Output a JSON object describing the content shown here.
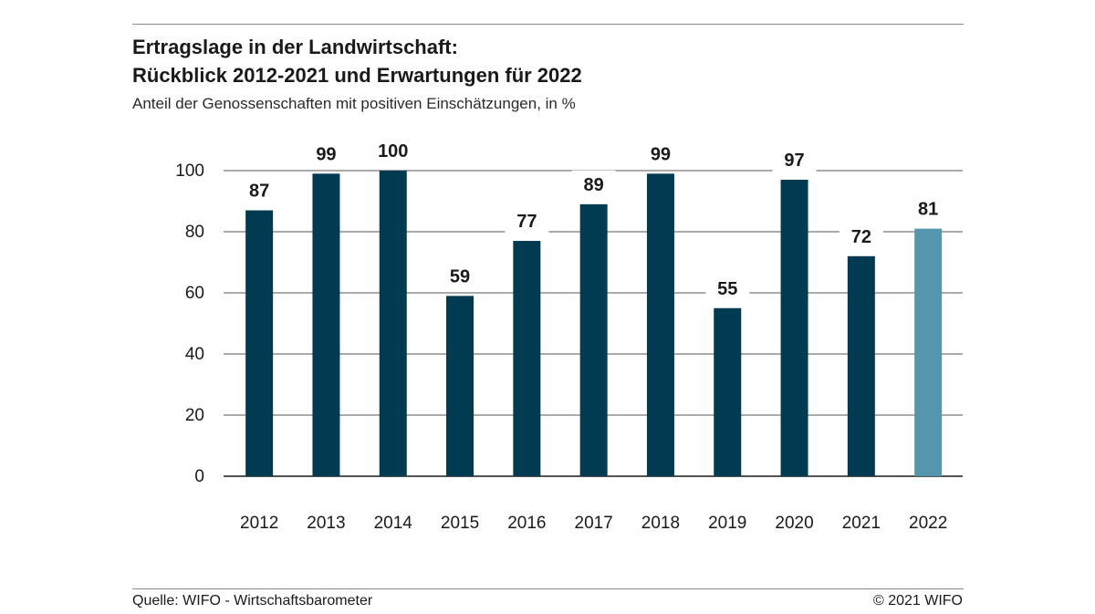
{
  "header": {
    "title_line1": "Ertragslage in der Landwirtschaft:",
    "title_line2": "Rückblick 2012-2021 und Erwartungen für 2022",
    "subtitle": "Anteil der Genossenschaften mit positiven Einschätzungen, in %"
  },
  "chart_data": {
    "type": "bar",
    "title": "Ertragslage in der Landwirtschaft: Rückblick 2012-2021 und Erwartungen für 2022",
    "subtitle": "Anteil der Genossenschaften mit positiven Einschätzungen, in %",
    "xlabel": "",
    "ylabel": "",
    "categories": [
      "2012",
      "2013",
      "2014",
      "2015",
      "2016",
      "2017",
      "2018",
      "2019",
      "2020",
      "2021",
      "2022"
    ],
    "values": [
      87,
      99,
      100,
      59,
      77,
      89,
      99,
      55,
      97,
      72,
      81
    ],
    "ylim": [
      0,
      100
    ],
    "yticks": [
      0,
      20,
      40,
      60,
      80,
      100
    ],
    "grid": true,
    "bar_colors": [
      "#003b52",
      "#003b52",
      "#003b52",
      "#003b52",
      "#003b52",
      "#003b52",
      "#003b52",
      "#003b52",
      "#003b52",
      "#003b52",
      "#5596ae"
    ]
  },
  "footer": {
    "source": "Quelle: WIFO - Wirtschaftsbarometer",
    "copyright": "© 2021 WIFO"
  }
}
